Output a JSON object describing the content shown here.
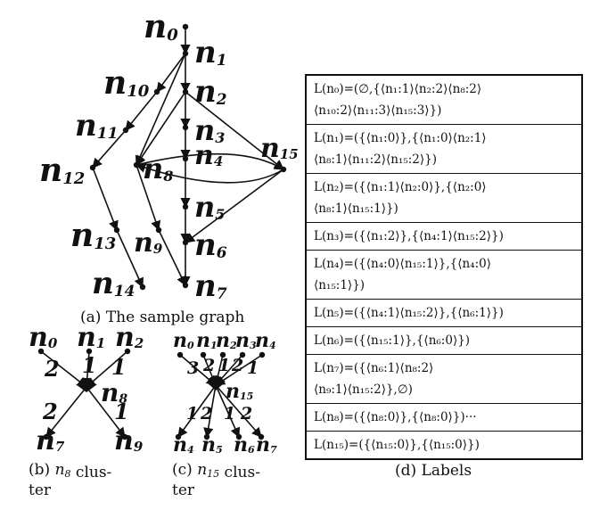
{
  "graph_a": {
    "nodes": [
      {
        "id": "n0",
        "base": "n",
        "sub": "0"
      },
      {
        "id": "n1",
        "base": "n",
        "sub": "1"
      },
      {
        "id": "n2",
        "base": "n",
        "sub": "2"
      },
      {
        "id": "n3",
        "base": "n",
        "sub": "3"
      },
      {
        "id": "n4",
        "base": "n",
        "sub": "4"
      },
      {
        "id": "n5",
        "base": "n",
        "sub": "5"
      },
      {
        "id": "n6",
        "base": "n",
        "sub": "6"
      },
      {
        "id": "n7",
        "base": "n",
        "sub": "7"
      },
      {
        "id": "n8",
        "base": "n",
        "sub": "8"
      },
      {
        "id": "n9",
        "base": "n",
        "sub": "9"
      },
      {
        "id": "n10",
        "base": "n",
        "sub": "10"
      },
      {
        "id": "n11",
        "base": "n",
        "sub": "11"
      },
      {
        "id": "n12",
        "base": "n",
        "sub": "12"
      },
      {
        "id": "n13",
        "base": "n",
        "sub": "13"
      },
      {
        "id": "n14",
        "base": "n",
        "sub": "14"
      },
      {
        "id": "n15",
        "base": "n",
        "sub": "15"
      }
    ],
    "edges": [
      [
        "n0",
        "n1"
      ],
      [
        "n1",
        "n2"
      ],
      [
        "n1",
        "n10"
      ],
      [
        "n10",
        "n11"
      ],
      [
        "n11",
        "n12"
      ],
      [
        "n12",
        "n13"
      ],
      [
        "n13",
        "n14"
      ],
      [
        "n2",
        "n3"
      ],
      [
        "n2",
        "n8"
      ],
      [
        "n2",
        "n15"
      ],
      [
        "n3",
        "n4"
      ],
      [
        "n4",
        "n5"
      ],
      [
        "n5",
        "n6"
      ],
      [
        "n6",
        "n7"
      ],
      [
        "n15",
        "n8"
      ],
      [
        "n8",
        "n15"
      ],
      [
        "n8",
        "n9"
      ],
      [
        "n9",
        "n7"
      ],
      [
        "n15",
        "n6"
      ],
      [
        "n1",
        "n8"
      ]
    ],
    "caption_prefix": "(a)",
    "caption": "The sample graph"
  },
  "cluster_b": {
    "top": [
      "n0",
      "n1",
      "n2"
    ],
    "top_labels": [
      {
        "base": "n",
        "sub": "0"
      },
      {
        "base": "n",
        "sub": "1"
      },
      {
        "base": "n",
        "sub": "2"
      }
    ],
    "center": {
      "base": "n",
      "sub": "8"
    },
    "bottom_labels": [
      {
        "base": "n",
        "sub": "7"
      },
      {
        "base": "n",
        "sub": "9"
      }
    ],
    "weights_top": [
      "2",
      "1",
      "1"
    ],
    "weights_bottom": [
      "2",
      "1"
    ],
    "caption_prefix": "(b)",
    "caption_math": "n8",
    "caption_lines": [
      "clus-",
      "ter"
    ]
  },
  "cluster_c": {
    "top_labels": [
      {
        "base": "n",
        "sub": "0"
      },
      {
        "base": "n",
        "sub": "1"
      },
      {
        "base": "n",
        "sub": "2"
      },
      {
        "base": "n",
        "sub": "3"
      },
      {
        "base": "n",
        "sub": "4"
      }
    ],
    "center": {
      "base": "n",
      "sub": "15"
    },
    "bottom_labels": [
      {
        "base": "n",
        "sub": "4"
      },
      {
        "base": "n",
        "sub": "5"
      },
      {
        "base": "n",
        "sub": "6"
      },
      {
        "base": "n",
        "sub": "7"
      }
    ],
    "weights_top": [
      "3",
      "2",
      "1",
      "2",
      "1"
    ],
    "weights_bottom": [
      "1",
      "2",
      "1",
      "2"
    ],
    "caption_prefix": "(c)",
    "caption_math": "n15",
    "caption_lines": [
      "clus-",
      "ter"
    ]
  },
  "labels_d": {
    "rows": [
      [
        "L(n₀)=(∅,{⟨n₁:1⟩⟨n₂:2⟩⟨n₈:2⟩",
        "⟨n₁₀:2⟩⟨n₁₁:3⟩⟨n₁₅:3⟩})"
      ],
      [
        "L(n₁)=({⟨n₁:0⟩},{⟨n₁:0⟩⟨n₂:1⟩",
        "⟨n₈:1⟩⟨n₁₁:2⟩⟨n₁₅:2⟩})"
      ],
      [
        "L(n₂)=({⟨n₁:1⟩⟨n₂:0⟩},{⟨n₂:0⟩",
        "⟨n₈:1⟩⟨n₁₅:1⟩})"
      ],
      [
        "L(n₃)=({⟨n₁:2⟩},{⟨n₄:1⟩⟨n₁₅:2⟩})"
      ],
      [
        "L(n₄)=({⟨n₄:0⟩⟨n₁₅:1⟩},{⟨n₄:0⟩",
        "⟨n₁₅:1⟩})"
      ],
      [
        "L(n₅)=({⟨n₄:1⟩⟨n₁₅:2⟩},{⟨n₆:1⟩})"
      ],
      [
        "L(n₆)=({⟨n₁₅:1⟩},{⟨n₆:0⟩})"
      ],
      [
        "L(n₇)=({⟨n₆:1⟩⟨n₈:2⟩",
        "⟨n₉:1⟩⟨n₁₅:2⟩},∅)"
      ],
      [
        "L(n₈)=({⟨n₈:0⟩},{⟨n₈:0⟩})···"
      ],
      [
        "L(n₁₅)=({⟨n₁₅:0⟩},{⟨n₁₅:0⟩})"
      ]
    ],
    "caption": "(d) Labels"
  }
}
